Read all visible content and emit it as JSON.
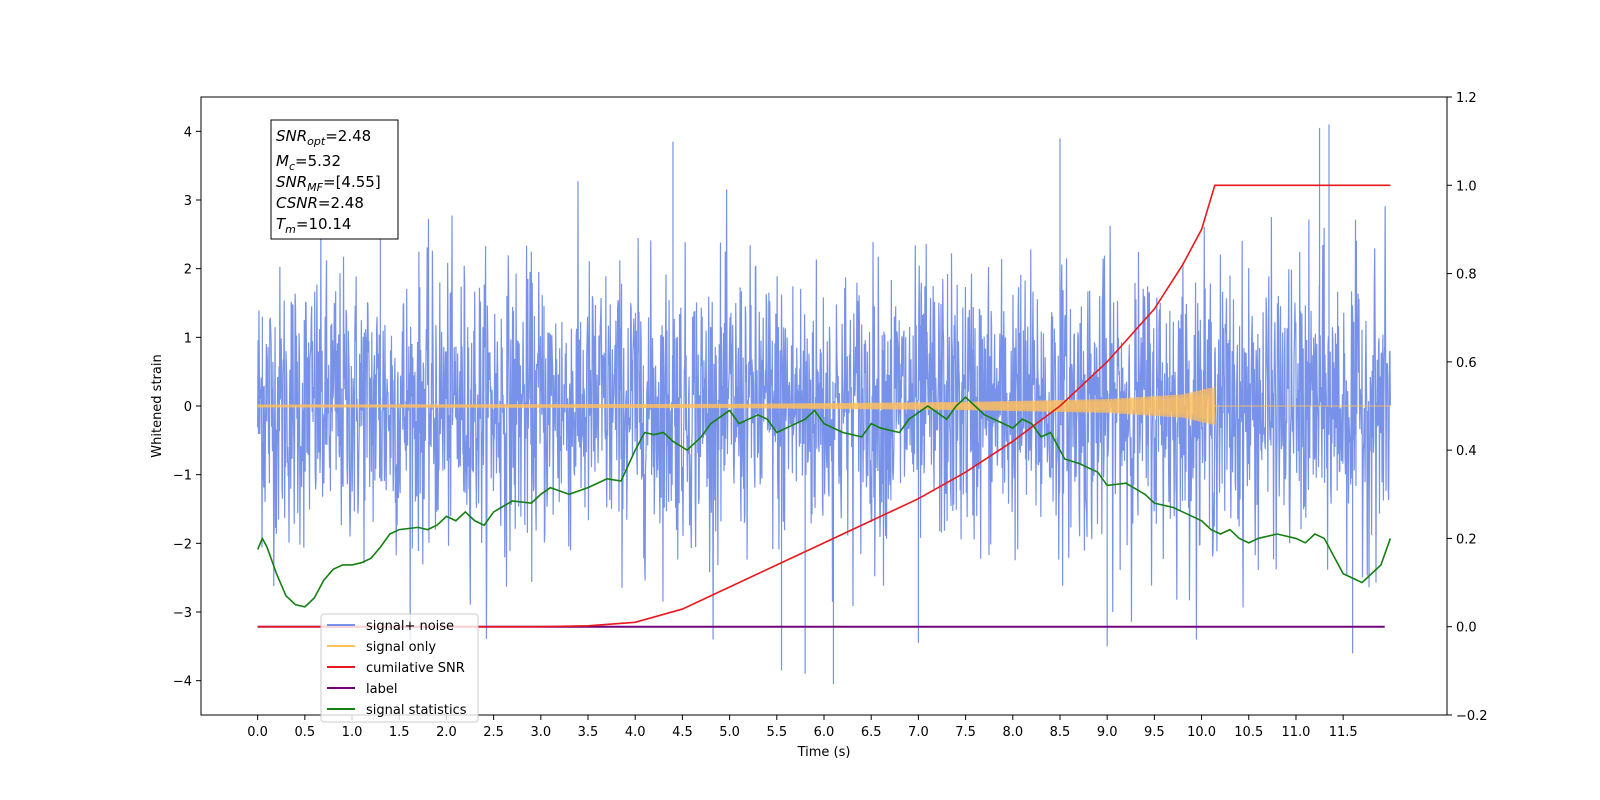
{
  "chart_data": {
    "type": "line",
    "xlabel": "Time (s)",
    "ylabel": "Whitened strain",
    "xlim": [
      -0.6,
      12.6
    ],
    "ylim_left": [
      -4.5,
      4.5
    ],
    "ylim_right": [
      -0.2,
      1.2
    ],
    "x_ticks": [
      0.0,
      0.5,
      1.0,
      1.5,
      2.0,
      2.5,
      3.0,
      3.5,
      4.0,
      4.5,
      5.0,
      5.5,
      6.0,
      6.5,
      7.0,
      7.5,
      8.0,
      8.5,
      9.0,
      9.5,
      10.0,
      10.5,
      11.0,
      11.5
    ],
    "x_tick_labels": [
      "0.0",
      "0.5",
      "1.0",
      "1.5",
      "2.0",
      "2.5",
      "3.0",
      "3.5",
      "4.0",
      "4.5",
      "5.0",
      "5.5",
      "6.0",
      "6.5",
      "7.0",
      "7.5",
      "8.0",
      "8.5",
      "9.0",
      "9.5",
      "10.0",
      "10.5",
      "11.0",
      "11.5"
    ],
    "y_left_ticks": [
      -4,
      -3,
      -2,
      -1,
      0,
      1,
      2,
      3,
      4
    ],
    "y_left_tick_labels": [
      "−4",
      "−3",
      "−2",
      "−1",
      "0",
      "1",
      "2",
      "3",
      "4"
    ],
    "y_right_ticks": [
      -0.2,
      0.0,
      0.2,
      0.4,
      0.6,
      0.8,
      1.0,
      1.2
    ],
    "y_right_tick_labels": [
      "−0.2",
      "0.0",
      "0.2",
      "0.4",
      "0.6",
      "0.8",
      "1.0",
      "1.2"
    ],
    "stats": {
      "snr_opt": {
        "name": "SNR",
        "sub": "opt",
        "value": "=2.48"
      },
      "mc": {
        "name": "M",
        "sub": "c",
        "value": "=5.32"
      },
      "snr_mf": {
        "name": "SNR",
        "sub": "MF",
        "value": "=[4.55]"
      },
      "csnr": {
        "name": "CSNR",
        "sub": "",
        "value": "=2.48"
      },
      "tm": {
        "name": "T",
        "sub": "m",
        "value": "=10.14"
      }
    },
    "series": [
      {
        "name": "signal+ noise",
        "axis": "left",
        "color": "#7792e8",
        "description_values": "noisy whitened strain spanning t in [0.0, 12.0], amplitude mostly within ±2.5 with spikes to about ±4",
        "x_range": [
          0.0,
          12.0
        ],
        "std": 1.0,
        "peak_samples": [
          [
            0.05,
            1.3
          ],
          [
            1.3,
            3.3
          ],
          [
            4.4,
            3.85
          ],
          [
            8.5,
            3.9
          ],
          [
            11.35,
            4.1
          ],
          [
            11.25,
            4.05
          ],
          [
            5.55,
            -3.85
          ],
          [
            5.8,
            -3.9
          ],
          [
            6.1,
            -4.05
          ],
          [
            11.6,
            -3.6
          ],
          [
            9.0,
            -3.5
          ],
          [
            7.0,
            -3.45
          ]
        ]
      },
      {
        "name": "signal only",
        "axis": "left",
        "color": "#ffbe5c",
        "description_values": "chirp signal with growing amplitude ending at merger time",
        "x_range": [
          0.0,
          10.14
        ],
        "envelope": [
          [
            0.0,
            0.02
          ],
          [
            5.0,
            0.03
          ],
          [
            7.5,
            0.06
          ],
          [
            9.0,
            0.1
          ],
          [
            9.8,
            0.17
          ],
          [
            10.14,
            0.28
          ]
        ]
      },
      {
        "name": "cumilative SNR",
        "axis": "right",
        "color": "#e8191d",
        "points": [
          [
            0.0,
            0.0
          ],
          [
            3.0,
            0.0
          ],
          [
            3.5,
            0.002
          ],
          [
            4.0,
            0.01
          ],
          [
            4.5,
            0.04
          ],
          [
            5.0,
            0.09
          ],
          [
            5.5,
            0.14
          ],
          [
            6.0,
            0.19
          ],
          [
            6.5,
            0.24
          ],
          [
            7.0,
            0.29
          ],
          [
            7.5,
            0.35
          ],
          [
            8.0,
            0.42
          ],
          [
            8.5,
            0.5
          ],
          [
            9.0,
            0.6
          ],
          [
            9.5,
            0.72
          ],
          [
            9.8,
            0.82
          ],
          [
            10.0,
            0.9
          ],
          [
            10.14,
            1.0
          ],
          [
            12.0,
            1.0
          ]
        ]
      },
      {
        "name": "label",
        "axis": "right",
        "color": "#72007a",
        "points": [
          [
            0.0,
            0.0
          ],
          [
            11.94,
            0.0
          ]
        ]
      },
      {
        "name": "signal statistics",
        "axis": "right",
        "color": "#158012",
        "points": [
          [
            0.0,
            0.175
          ],
          [
            0.05,
            0.2
          ],
          [
            0.1,
            0.18
          ],
          [
            0.2,
            0.12
          ],
          [
            0.3,
            0.07
          ],
          [
            0.4,
            0.05
          ],
          [
            0.5,
            0.045
          ],
          [
            0.6,
            0.065
          ],
          [
            0.7,
            0.105
          ],
          [
            0.8,
            0.13
          ],
          [
            0.9,
            0.14
          ],
          [
            1.0,
            0.14
          ],
          [
            1.1,
            0.145
          ],
          [
            1.2,
            0.155
          ],
          [
            1.3,
            0.18
          ],
          [
            1.4,
            0.21
          ],
          [
            1.5,
            0.22
          ],
          [
            1.7,
            0.225
          ],
          [
            1.8,
            0.22
          ],
          [
            1.9,
            0.23
          ],
          [
            2.0,
            0.25
          ],
          [
            2.1,
            0.24
          ],
          [
            2.2,
            0.26
          ],
          [
            2.3,
            0.24
          ],
          [
            2.4,
            0.23
          ],
          [
            2.5,
            0.26
          ],
          [
            2.7,
            0.285
          ],
          [
            2.9,
            0.28
          ],
          [
            3.0,
            0.3
          ],
          [
            3.1,
            0.315
          ],
          [
            3.3,
            0.3
          ],
          [
            3.5,
            0.315
          ],
          [
            3.7,
            0.335
          ],
          [
            3.85,
            0.33
          ],
          [
            4.0,
            0.4
          ],
          [
            4.1,
            0.44
          ],
          [
            4.2,
            0.435
          ],
          [
            4.3,
            0.44
          ],
          [
            4.4,
            0.42
          ],
          [
            4.55,
            0.4
          ],
          [
            4.7,
            0.43
          ],
          [
            4.8,
            0.46
          ],
          [
            5.0,
            0.49
          ],
          [
            5.1,
            0.46
          ],
          [
            5.3,
            0.48
          ],
          [
            5.4,
            0.47
          ],
          [
            5.5,
            0.44
          ],
          [
            5.6,
            0.45
          ],
          [
            5.8,
            0.47
          ],
          [
            5.9,
            0.49
          ],
          [
            6.0,
            0.46
          ],
          [
            6.2,
            0.44
          ],
          [
            6.4,
            0.43
          ],
          [
            6.5,
            0.46
          ],
          [
            6.6,
            0.45
          ],
          [
            6.8,
            0.44
          ],
          [
            6.9,
            0.47
          ],
          [
            7.1,
            0.5
          ],
          [
            7.3,
            0.47
          ],
          [
            7.4,
            0.5
          ],
          [
            7.5,
            0.52
          ],
          [
            7.6,
            0.5
          ],
          [
            7.7,
            0.48
          ],
          [
            7.9,
            0.46
          ],
          [
            8.0,
            0.45
          ],
          [
            8.1,
            0.47
          ],
          [
            8.2,
            0.46
          ],
          [
            8.3,
            0.43
          ],
          [
            8.4,
            0.44
          ],
          [
            8.55,
            0.38
          ],
          [
            8.7,
            0.37
          ],
          [
            8.9,
            0.35
          ],
          [
            9.0,
            0.32
          ],
          [
            9.2,
            0.325
          ],
          [
            9.4,
            0.3
          ],
          [
            9.5,
            0.28
          ],
          [
            9.7,
            0.27
          ],
          [
            9.8,
            0.26
          ],
          [
            10.0,
            0.24
          ],
          [
            10.1,
            0.22
          ],
          [
            10.2,
            0.21
          ],
          [
            10.3,
            0.22
          ],
          [
            10.4,
            0.2
          ],
          [
            10.5,
            0.19
          ],
          [
            10.6,
            0.2
          ],
          [
            10.8,
            0.21
          ],
          [
            11.0,
            0.2
          ],
          [
            11.1,
            0.19
          ],
          [
            11.2,
            0.21
          ],
          [
            11.3,
            0.2
          ],
          [
            11.4,
            0.16
          ],
          [
            11.5,
            0.12
          ],
          [
            11.6,
            0.11
          ],
          [
            11.7,
            0.1
          ],
          [
            11.8,
            0.12
          ],
          [
            11.9,
            0.14
          ],
          [
            12.0,
            0.2
          ]
        ]
      }
    ],
    "legend": {
      "location": "bottom-left",
      "entries": [
        {
          "label": "signal+ noise",
          "color": "#7792e8"
        },
        {
          "label": "signal only",
          "color": "#ffbe5c"
        },
        {
          "label": "cumilative SNR",
          "color": "#e8191d"
        },
        {
          "label": "label",
          "color": "#72007a"
        },
        {
          "label": "signal statistics",
          "color": "#158012"
        }
      ]
    }
  }
}
